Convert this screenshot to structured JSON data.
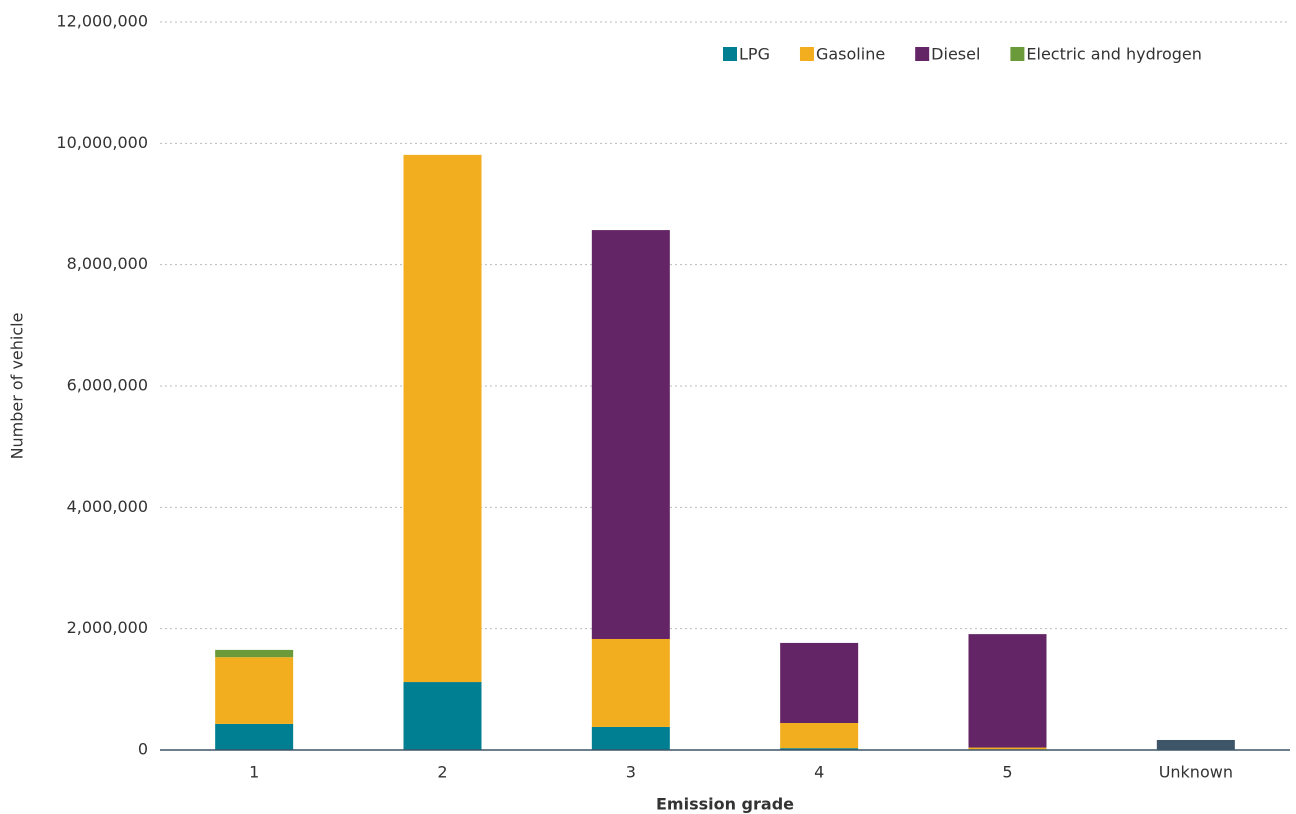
{
  "chart_data": {
    "type": "stacked_bar",
    "categories": [
      "1",
      "2",
      "3",
      "4",
      "5",
      "Unknown"
    ],
    "series": [
      {
        "name": "LPG",
        "color": "#007e92",
        "values": [
          430000,
          1120000,
          380000,
          30000,
          10000,
          0
        ]
      },
      {
        "name": "Gasoline",
        "color": "#f2ae1e",
        "values": [
          1100000,
          8690000,
          1450000,
          415000,
          30000,
          0
        ]
      },
      {
        "name": "Diesel",
        "color": "#642566",
        "values": [
          0,
          0,
          6740000,
          1320000,
          1870000,
          0
        ]
      },
      {
        "name": "Electric and hydrogen",
        "color": "#6a9a3a",
        "values": [
          120000,
          0,
          0,
          0,
          0,
          0
        ]
      },
      {
        "color": "#3d5566",
        "values": [
          0,
          0,
          0,
          0,
          0,
          165000
        ]
      }
    ],
    "x_label": "Emission grade",
    "y_label": "Number of vehicle",
    "ylim": [
      0,
      12000000
    ],
    "yticks": [
      {
        "value": 0,
        "label": "0"
      },
      {
        "value": 2000000,
        "label": "2,000,000"
      },
      {
        "value": 4000000,
        "label": "4,000,000"
      },
      {
        "value": 6000000,
        "label": "6,000,000"
      },
      {
        "value": 8000000,
        "label": "8,000,000"
      },
      {
        "value": 10000000,
        "label": "10,000,000"
      },
      {
        "value": 12000000,
        "label": "12,000,000"
      }
    ],
    "grid": true,
    "legend": "top-right"
  }
}
